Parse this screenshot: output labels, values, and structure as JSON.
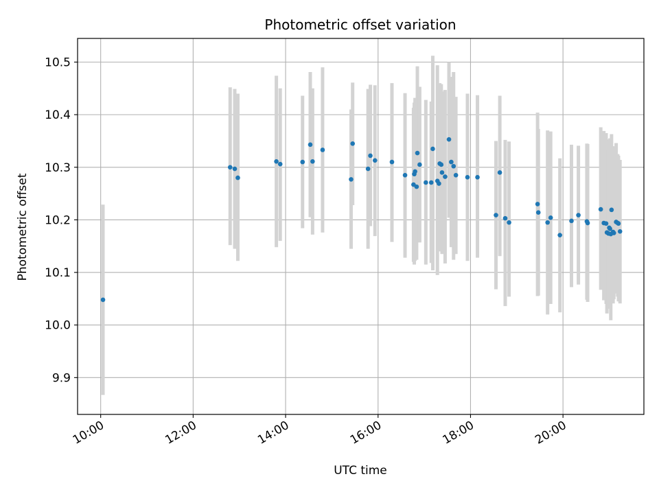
{
  "chart_data": {
    "type": "scatter",
    "title": "Photometric offset variation",
    "xlabel": "UTC time",
    "ylabel": "Photometric offset",
    "grid": true,
    "xlim": [
      "09:30",
      "21:45"
    ],
    "ylim": [
      9.83,
      10.545
    ],
    "x_ticks": [
      "10:00",
      "12:00",
      "14:00",
      "16:00",
      "18:00",
      "20:00"
    ],
    "y_ticks": [
      9.9,
      10.0,
      10.1,
      10.2,
      10.3,
      10.4,
      10.5
    ],
    "colors": {
      "points": "#1f77b4",
      "errorbars": "#d3d3d3",
      "grid": "#b0b0b0",
      "axes": "#000000"
    },
    "series": [
      {
        "x": [
          "10:03",
          "12:48",
          "12:54",
          "12:58",
          "13:48",
          "13:53",
          "14:22",
          "14:32",
          "14:35",
          "14:48",
          "15:25",
          "15:27",
          "15:47",
          "15:50",
          "15:56",
          "16:18",
          "16:35",
          "16:46",
          "16:47",
          "16:48",
          "16:50",
          "16:51",
          "16:54",
          "17:02",
          "17:09",
          "17:11",
          "17:17",
          "17:19",
          "17:20",
          "17:22",
          "17:23",
          "17:27",
          "17:32",
          "17:35",
          "17:38",
          "17:41",
          "17:56",
          "18:09",
          "18:33",
          "18:38",
          "18:45",
          "18:50",
          "19:27",
          "19:28",
          "19:40",
          "19:44",
          "19:56",
          "20:11",
          "20:20",
          "20:31",
          "20:32",
          "20:49",
          "20:53",
          "20:56",
          "20:57",
          "20:59",
          "21:00",
          "21:01",
          "21:02",
          "21:03",
          "21:05",
          "21:06",
          "21:09",
          "21:11",
          "21:12",
          "21:14"
        ],
        "y": [
          10.048,
          10.3,
          10.297,
          10.28,
          10.311,
          10.306,
          10.31,
          10.343,
          10.311,
          10.333,
          10.277,
          10.345,
          10.297,
          10.322,
          10.313,
          10.31,
          10.285,
          10.267,
          10.287,
          10.292,
          10.263,
          10.327,
          10.305,
          10.271,
          10.271,
          10.335,
          10.274,
          10.269,
          10.307,
          10.305,
          10.29,
          10.282,
          10.353,
          10.31,
          10.302,
          10.285,
          10.281,
          10.281,
          10.209,
          10.29,
          10.203,
          10.195,
          10.23,
          10.214,
          10.195,
          10.204,
          10.171,
          10.198,
          10.209,
          10.197,
          10.194,
          10.22,
          10.194,
          10.193,
          10.176,
          10.174,
          10.185,
          10.183,
          10.173,
          10.219,
          10.177,
          10.175,
          10.196,
          10.194,
          10.193,
          10.178
        ],
        "error_low": [
          9.867,
          10.152,
          10.145,
          10.122,
          10.148,
          10.16,
          10.184,
          10.205,
          10.172,
          10.176,
          10.145,
          10.228,
          10.145,
          10.188,
          10.169,
          10.158,
          10.128,
          10.12,
          10.115,
          10.122,
          10.124,
          10.17,
          10.157,
          10.115,
          10.118,
          10.104,
          10.095,
          10.14,
          10.154,
          10.152,
          10.135,
          10.117,
          10.204,
          10.148,
          10.124,
          10.135,
          10.122,
          10.128,
          10.068,
          10.131,
          10.036,
          10.054,
          10.055,
          10.056,
          10.02,
          10.04,
          10.024,
          10.072,
          10.077,
          10.048,
          10.044,
          10.067,
          10.047,
          10.04,
          10.022,
          10.031,
          10.033,
          10.043,
          10.009,
          10.068,
          10.041,
          10.049,
          10.06,
          10.054,
          10.045,
          10.041
        ],
        "error_high": [
          10.229,
          10.452,
          10.449,
          10.44,
          10.474,
          10.45,
          10.436,
          10.481,
          10.45,
          10.49,
          10.41,
          10.461,
          10.449,
          10.457,
          10.456,
          10.46,
          10.441,
          10.413,
          10.423,
          10.432,
          10.401,
          10.492,
          10.453,
          10.428,
          10.425,
          10.512,
          10.494,
          10.398,
          10.46,
          10.458,
          10.444,
          10.447,
          10.5,
          10.472,
          10.481,
          10.434,
          10.44,
          10.437,
          10.35,
          10.436,
          10.352,
          10.349,
          10.404,
          10.373,
          10.37,
          10.368,
          10.317,
          10.343,
          10.341,
          10.345,
          10.344,
          10.376,
          10.369,
          10.365,
          10.346,
          10.332,
          10.353,
          10.355,
          10.337,
          10.363,
          10.314,
          10.34,
          10.346,
          10.325,
          10.322,
          10.314
        ]
      }
    ]
  }
}
